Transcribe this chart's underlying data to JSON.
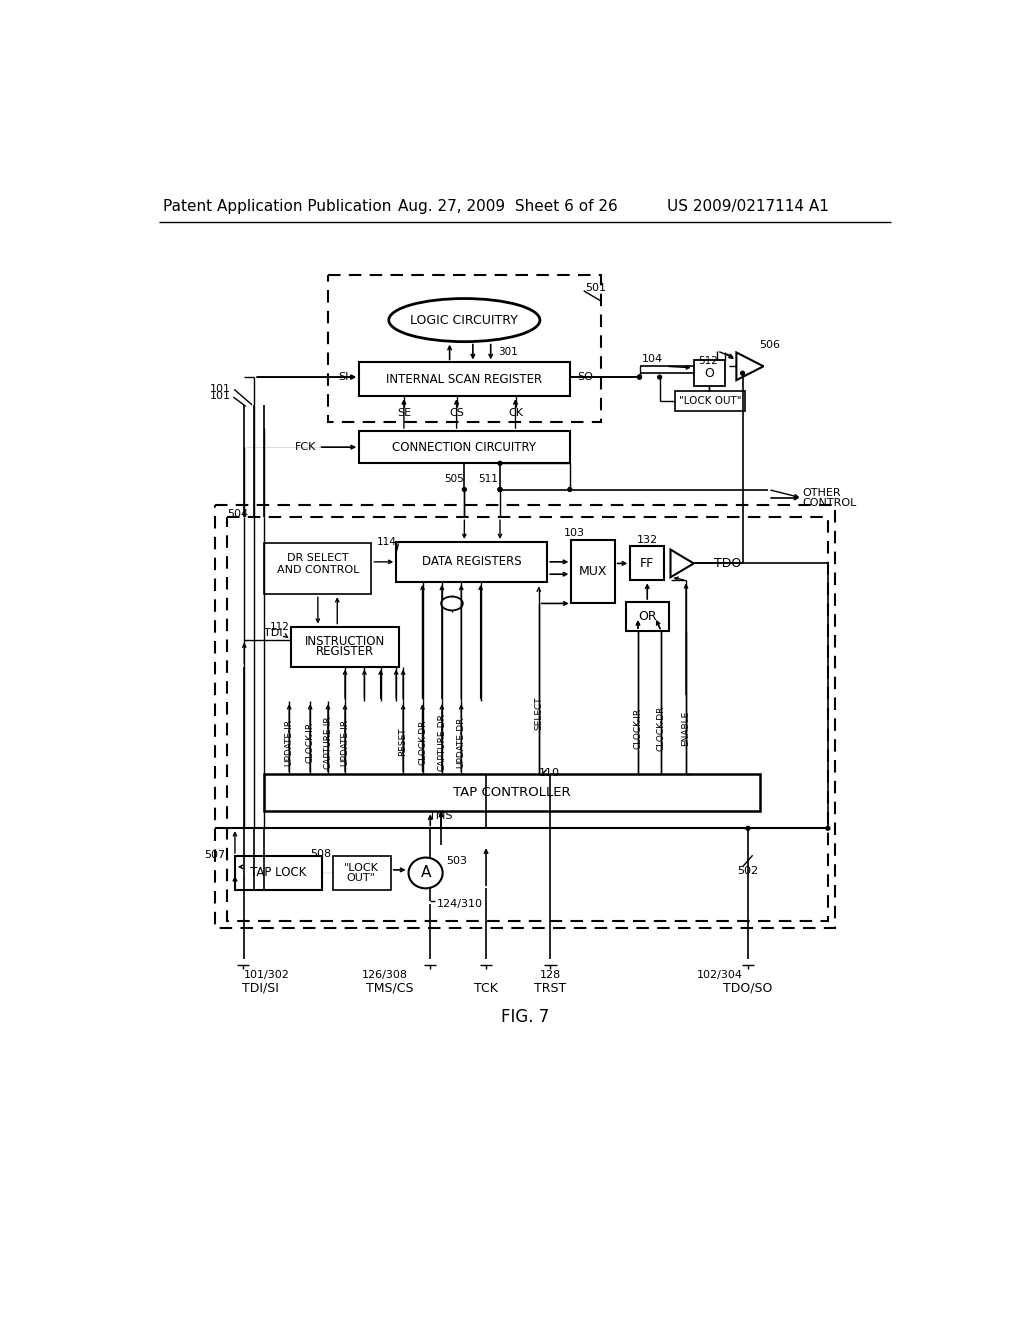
{
  "title_left": "Patent Application Publication",
  "title_mid": "Aug. 27, 2009  Sheet 6 of 26",
  "title_right": "US 2009/0217114 A1",
  "fig_label": "FIG. 7",
  "background": "#ffffff"
}
